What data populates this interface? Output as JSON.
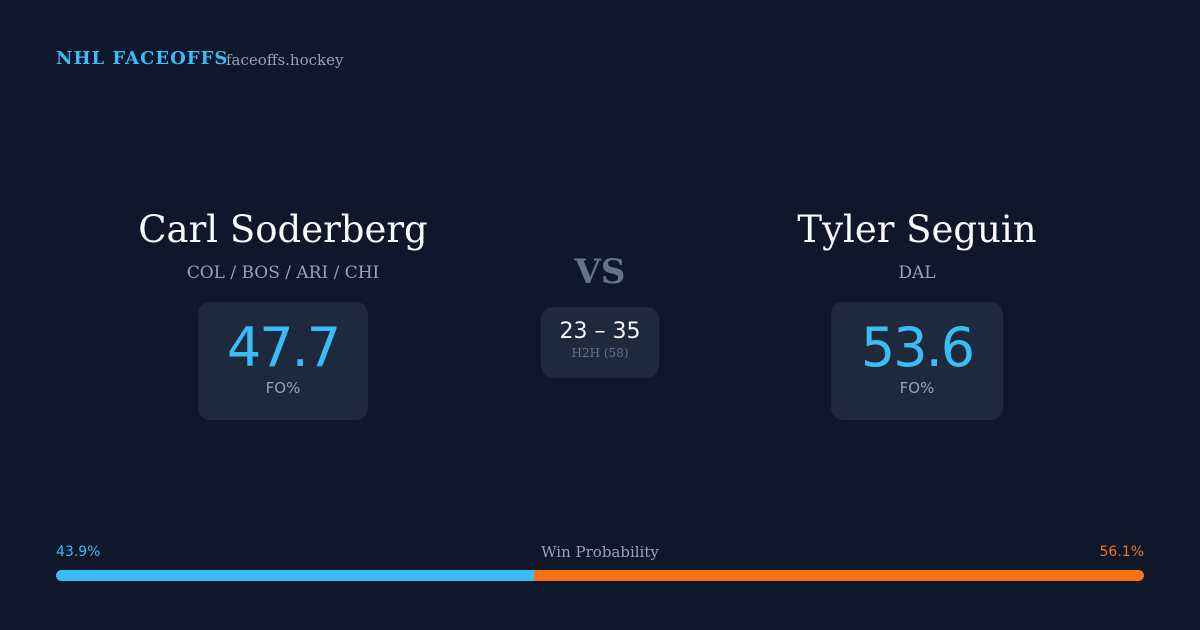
{
  "header": {
    "brand": "NHL FACEOFFS",
    "site": "faceoffs.hockey"
  },
  "players": [
    {
      "name": "Carl Soderberg",
      "teams": "COL / BOS / ARI / CHI",
      "fo_pct": 47.7,
      "stat_label": "FO%"
    },
    {
      "name": "Tyler Seguin",
      "teams": "DAL",
      "fo_pct": 53.6,
      "stat_label": "FO%"
    }
  ],
  "versus": "VS",
  "head_to_head": {
    "record": "23 – 35",
    "note": "H2H (58)"
  },
  "win_probability": {
    "title": "Win Probability",
    "left": {
      "value": 43.9,
      "label": "43.9%",
      "color": "#38bdf8"
    },
    "right": {
      "value": 56.1,
      "label": "56.1%",
      "color": "#f97316"
    }
  }
}
